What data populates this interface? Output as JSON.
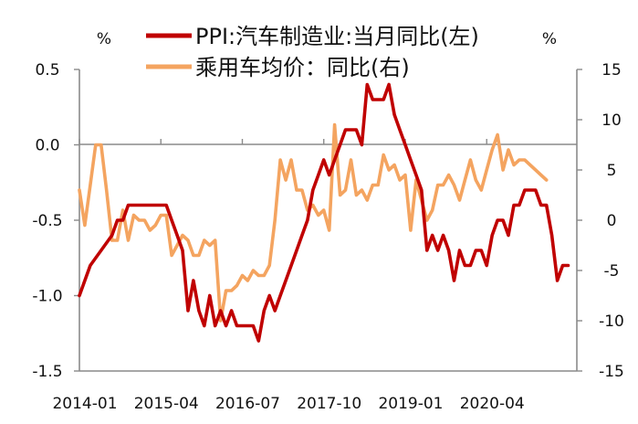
{
  "chart_data": {
    "type": "line",
    "x_ticks": [
      "2014-01",
      "2015-04",
      "2016-07",
      "2017-10",
      "2019-01",
      "2020-04"
    ],
    "left_axis": {
      "unit": "%",
      "ylim": [
        -1.5,
        0.5
      ],
      "ticks": [
        "0.5",
        "0.0",
        "-0.5",
        "-1.0",
        "-1.5"
      ]
    },
    "right_axis": {
      "unit": "%",
      "ylim": [
        -15,
        15
      ],
      "ticks": [
        "15",
        "10",
        "5",
        "0",
        "-5",
        "-10",
        "-15"
      ]
    },
    "legend_position": "top-center",
    "grid": false,
    "series": [
      {
        "name": "PPI:汽车制造业:当月同比(左)",
        "axis": "left",
        "color": "#c00000",
        "points": [
          [
            "2014-01",
            -1.0
          ],
          [
            "2014-03",
            -0.8
          ],
          [
            "2014-05",
            -0.7
          ],
          [
            "2014-07",
            -0.6
          ],
          [
            "2014-08",
            -0.5
          ],
          [
            "2014-09",
            -0.5
          ],
          [
            "2014-10",
            -0.4
          ],
          [
            "2014-12",
            -0.4
          ],
          [
            "2015-03",
            -0.4
          ],
          [
            "2015-05",
            -0.4
          ],
          [
            "2015-06",
            -0.5
          ],
          [
            "2015-07",
            -0.6
          ],
          [
            "2015-08",
            -0.7
          ],
          [
            "2015-09",
            -1.1
          ],
          [
            "2015-10",
            -0.9
          ],
          [
            "2015-11",
            -1.1
          ],
          [
            "2015-12",
            -1.2
          ],
          [
            "2016-01",
            -1.0
          ],
          [
            "2016-02",
            -1.2
          ],
          [
            "2016-03",
            -1.1
          ],
          [
            "2016-04",
            -1.2
          ],
          [
            "2016-05",
            -1.1
          ],
          [
            "2016-06",
            -1.2
          ],
          [
            "2016-08",
            -1.2
          ],
          [
            "2016-09",
            -1.2
          ],
          [
            "2016-10",
            -1.3
          ],
          [
            "2016-11",
            -1.1
          ],
          [
            "2016-12",
            -1.0
          ],
          [
            "2017-01",
            -1.1
          ],
          [
            "2017-02",
            -1.0
          ],
          [
            "2017-03",
            -0.9
          ],
          [
            "2017-05",
            -0.7
          ],
          [
            "2017-06",
            -0.6
          ],
          [
            "2017-07",
            -0.5
          ],
          [
            "2017-08",
            -0.3
          ],
          [
            "2017-09",
            -0.2
          ],
          [
            "2017-10",
            -0.1
          ],
          [
            "2017-11",
            -0.2
          ],
          [
            "2017-12",
            -0.1
          ],
          [
            "2018-01",
            0.0
          ],
          [
            "2018-02",
            0.1
          ],
          [
            "2018-04",
            0.1
          ],
          [
            "2018-05",
            0.0
          ],
          [
            "2018-06",
            0.4
          ],
          [
            "2018-07",
            0.3
          ],
          [
            "2018-09",
            0.3
          ],
          [
            "2018-10",
            0.4
          ],
          [
            "2018-11",
            0.2
          ],
          [
            "2018-12",
            0.1
          ],
          [
            "2019-01",
            0.0
          ],
          [
            "2019-02",
            -0.1
          ],
          [
            "2019-03",
            -0.2
          ],
          [
            "2019-04",
            -0.3
          ],
          [
            "2019-05",
            -0.7
          ],
          [
            "2019-06",
            -0.6
          ],
          [
            "2019-07",
            -0.7
          ],
          [
            "2019-08",
            -0.6
          ],
          [
            "2019-09",
            -0.7
          ],
          [
            "2019-10",
            -0.9
          ],
          [
            "2019-11",
            -0.7
          ],
          [
            "2019-12",
            -0.8
          ],
          [
            "2020-01",
            -0.8
          ],
          [
            "2020-02",
            -0.7
          ],
          [
            "2020-03",
            -0.7
          ],
          [
            "2020-04",
            -0.8
          ],
          [
            "2020-05",
            -0.6
          ],
          [
            "2020-06",
            -0.5
          ],
          [
            "2020-07",
            -0.5
          ],
          [
            "2020-08",
            -0.6
          ],
          [
            "2020-09",
            -0.4
          ],
          [
            "2020-10",
            -0.4
          ],
          [
            "2020-11",
            -0.3
          ],
          [
            "2021-01",
            -0.3
          ],
          [
            "2021-02",
            -0.4
          ],
          [
            "2021-03",
            -0.4
          ],
          [
            "2021-04",
            -0.6
          ],
          [
            "2021-05",
            -0.9
          ],
          [
            "2021-06",
            -0.8
          ],
          [
            "2021-07",
            -0.8
          ]
        ]
      },
      {
        "name": "乘用车均价：同比(右)",
        "axis": "right",
        "color": "#f4a460",
        "points": [
          [
            "2014-01",
            3.0
          ],
          [
            "2014-02",
            -0.5
          ],
          [
            "2014-03",
            3.5
          ],
          [
            "2014-04",
            7.5
          ],
          [
            "2014-05",
            7.5
          ],
          [
            "2014-06",
            3.0
          ],
          [
            "2014-07",
            -2.0
          ],
          [
            "2014-08",
            -2.0
          ],
          [
            "2014-09",
            1.0
          ],
          [
            "2014-10",
            -2.0
          ],
          [
            "2014-11",
            0.5
          ],
          [
            "2014-12",
            0.0
          ],
          [
            "2015-01",
            0.0
          ],
          [
            "2015-02",
            -1.0
          ],
          [
            "2015-03",
            -0.5
          ],
          [
            "2015-04",
            0.5
          ],
          [
            "2015-05",
            0.5
          ],
          [
            "2015-06",
            -3.5
          ],
          [
            "2015-07",
            -2.5
          ],
          [
            "2015-08",
            -1.5
          ],
          [
            "2015-09",
            -2.0
          ],
          [
            "2015-10",
            -3.5
          ],
          [
            "2015-11",
            -3.5
          ],
          [
            "2015-12",
            -2.0
          ],
          [
            "2016-01",
            -2.5
          ],
          [
            "2016-02",
            -2.0
          ],
          [
            "2016-03",
            -10.0
          ],
          [
            "2016-04",
            -7.0
          ],
          [
            "2016-05",
            -7.0
          ],
          [
            "2016-06",
            -6.5
          ],
          [
            "2016-07",
            -5.5
          ],
          [
            "2016-08",
            -6.0
          ],
          [
            "2016-09",
            -5.0
          ],
          [
            "2016-10",
            -5.5
          ],
          [
            "2016-11",
            -5.5
          ],
          [
            "2016-12",
            -4.5
          ],
          [
            "2017-01",
            0.0
          ],
          [
            "2017-02",
            6.0
          ],
          [
            "2017-03",
            4.0
          ],
          [
            "2017-04",
            6.0
          ],
          [
            "2017-05",
            3.0
          ],
          [
            "2017-06",
            3.0
          ],
          [
            "2017-07",
            1.0
          ],
          [
            "2017-08",
            1.5
          ],
          [
            "2017-09",
            0.5
          ],
          [
            "2017-10",
            1.0
          ],
          [
            "2017-11",
            -1.0
          ],
          [
            "2017-12",
            9.5
          ],
          [
            "2018-01",
            2.5
          ],
          [
            "2018-02",
            3.0
          ],
          [
            "2018-03",
            6.0
          ],
          [
            "2018-04",
            2.5
          ],
          [
            "2018-05",
            3.0
          ],
          [
            "2018-06",
            2.0
          ],
          [
            "2018-07",
            3.5
          ],
          [
            "2018-08",
            3.5
          ],
          [
            "2018-09",
            6.5
          ],
          [
            "2018-10",
            5.0
          ],
          [
            "2018-11",
            5.5
          ],
          [
            "2018-12",
            4.0
          ],
          [
            "2019-01",
            4.5
          ],
          [
            "2019-02",
            -1.0
          ],
          [
            "2019-03",
            4.0
          ],
          [
            "2019-04",
            2.0
          ],
          [
            "2019-05",
            0.0
          ],
          [
            "2019-06",
            1.0
          ],
          [
            "2019-07",
            3.5
          ],
          [
            "2019-08",
            3.5
          ],
          [
            "2019-09",
            4.5
          ],
          [
            "2019-10",
            3.5
          ],
          [
            "2019-11",
            2.0
          ],
          [
            "2019-12",
            4.0
          ],
          [
            "2020-01",
            6.0
          ],
          [
            "2020-02",
            4.0
          ],
          [
            "2020-03",
            3.0
          ],
          [
            "2020-04",
            5.0
          ],
          [
            "2020-05",
            7.0
          ],
          [
            "2020-06",
            8.5
          ],
          [
            "2020-07",
            5.0
          ],
          [
            "2020-08",
            7.0
          ],
          [
            "2020-09",
            5.5
          ],
          [
            "2020-10",
            6.0
          ],
          [
            "2020-11",
            6.0
          ],
          [
            "2020-12",
            5.5
          ],
          [
            "2021-01",
            5.0
          ],
          [
            "2021-02",
            4.5
          ],
          [
            "2021-03",
            4.0
          ]
        ]
      }
    ]
  }
}
